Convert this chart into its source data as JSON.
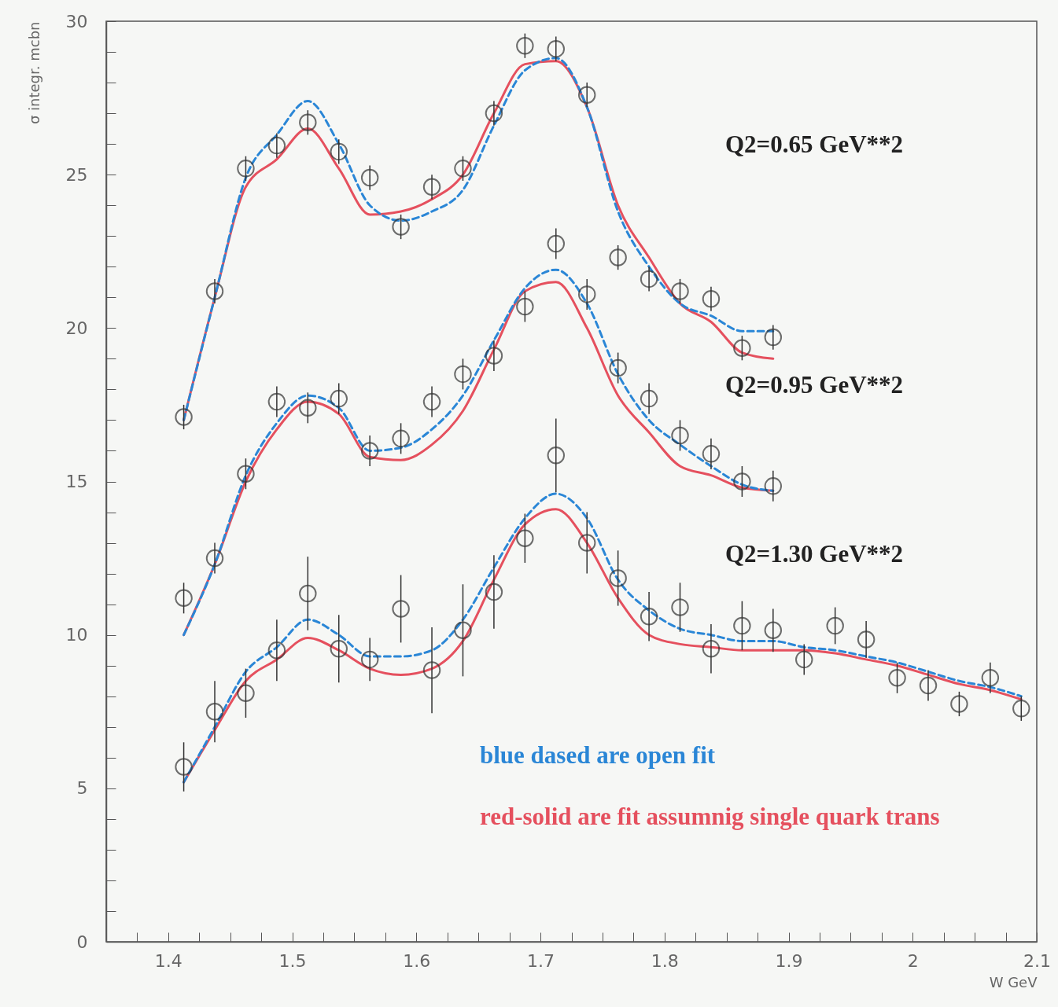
{
  "chart_data": {
    "type": "scatter",
    "xlabel": "W GeV",
    "ylabel": "σ integr. mcbn",
    "xlim": [
      1.35,
      2.1
    ],
    "ylim": [
      0,
      30
    ],
    "xticks": [
      {
        "value": 1.375,
        "label": null
      },
      1.4,
      {
        "value": 1.425,
        "label": null
      },
      {
        "value": 1.45,
        "label": null
      },
      {
        "value": 1.475,
        "label": null
      },
      1.5,
      {
        "value": 1.525,
        "label": null
      },
      {
        "value": 1.55,
        "label": null
      },
      {
        "value": 1.575,
        "label": null
      },
      1.6,
      {
        "value": 1.625,
        "label": null
      },
      {
        "value": 1.65,
        "label": null
      },
      {
        "value": 1.675,
        "label": null
      },
      1.7,
      {
        "value": 1.725,
        "label": null
      },
      {
        "value": 1.75,
        "label": null
      },
      {
        "value": 1.775,
        "label": null
      },
      1.8,
      {
        "value": 1.825,
        "label": null
      },
      {
        "value": 1.85,
        "label": null
      },
      {
        "value": 1.875,
        "label": null
      },
      1.9,
      {
        "value": 1.925,
        "label": null
      },
      {
        "value": 1.95,
        "label": null
      },
      {
        "value": 1.975,
        "label": null
      },
      2,
      {
        "value": 2.025,
        "label": null
      },
      {
        "value": 2.05,
        "label": null
      },
      {
        "value": 2.075,
        "label": null
      },
      2.1
    ],
    "yticks": [
      0,
      {
        "value": 1,
        "label": null
      },
      {
        "value": 2,
        "label": null
      },
      {
        "value": 3,
        "label": null
      },
      {
        "value": 4,
        "label": null
      },
      5,
      {
        "value": 6,
        "label": null
      },
      {
        "value": 7,
        "label": null
      },
      {
        "value": 8,
        "label": null
      },
      {
        "value": 9,
        "label": null
      },
      10,
      {
        "value": 11,
        "label": null
      },
      {
        "value": 12,
        "label": null
      },
      {
        "value": 13,
        "label": null
      },
      {
        "value": 14,
        "label": null
      },
      15,
      {
        "value": 16,
        "label": null
      },
      {
        "value": 17,
        "label": null
      },
      {
        "value": 18,
        "label": null
      },
      {
        "value": 19,
        "label": null
      },
      20,
      {
        "value": 21,
        "label": null
      },
      {
        "value": 22,
        "label": null
      },
      {
        "value": 23,
        "label": null
      },
      {
        "value": 24,
        "label": null
      },
      25,
      {
        "value": 26,
        "label": null
      },
      {
        "value": 27,
        "label": null
      },
      {
        "value": 28,
        "label": null
      },
      {
        "value": 29,
        "label": null
      },
      30
    ],
    "series": [
      {
        "marker": "circle",
        "color": "#333333",
        "x": [
          1.4125,
          1.4375,
          1.4625,
          1.4875,
          1.5125,
          1.5375,
          1.5625,
          1.5875,
          1.6125,
          1.6375,
          1.6625,
          1.6875,
          1.7125,
          1.7375,
          1.7625,
          1.7875,
          1.8125,
          1.8375,
          1.8625,
          1.8875
        ],
        "values": [
          17.1,
          21.2,
          25.2,
          25.95,
          26.7,
          25.75,
          24.9,
          23.3,
          24.6,
          25.2,
          27.0,
          29.2,
          29.1,
          27.6,
          22.3,
          21.6,
          21.2,
          20.95,
          19.35,
          19.7
        ],
        "errors": [
          0.4,
          0.4,
          0.4,
          0.4,
          0.4,
          0.4,
          0.4,
          0.4,
          0.4,
          0.4,
          0.4,
          0.4,
          0.4,
          0.4,
          0.4,
          0.4,
          0.4,
          0.4,
          0.4,
          0.4
        ]
      },
      {
        "type": "line",
        "line_style": "dashed",
        "color": "#2a86d6",
        "x": [
          1.4125,
          1.4375,
          1.4625,
          1.4875,
          1.5125,
          1.5375,
          1.5625,
          1.5875,
          1.6125,
          1.6375,
          1.6625,
          1.6875,
          1.7125,
          1.7375,
          1.7625,
          1.7875,
          1.8125,
          1.8375,
          1.8625,
          1.8875
        ],
        "values": [
          17.0,
          21.0,
          24.9,
          26.3,
          27.4,
          26.0,
          24.0,
          23.5,
          23.8,
          24.5,
          26.6,
          28.4,
          28.8,
          27.2,
          23.8,
          22.0,
          20.8,
          20.4,
          19.9,
          19.9
        ]
      },
      {
        "type": "line",
        "line_style": "solid",
        "color": "#e5505e",
        "x": [
          1.4125,
          1.4375,
          1.4625,
          1.4875,
          1.5125,
          1.5375,
          1.5625,
          1.5875,
          1.6125,
          1.6375,
          1.6625,
          1.6875,
          1.7125,
          1.7375,
          1.7625,
          1.7875,
          1.8125,
          1.8375,
          1.8625,
          1.8875
        ],
        "values": [
          17.0,
          21.0,
          24.6,
          25.5,
          26.5,
          25.2,
          23.7,
          23.8,
          24.2,
          25.0,
          27.0,
          28.6,
          28.7,
          27.2,
          24.0,
          22.3,
          20.8,
          20.2,
          19.2,
          19.0
        ]
      },
      {
        "marker": "circle",
        "color": "#333333",
        "x": [
          1.4125,
          1.4375,
          1.4625,
          1.4875,
          1.5125,
          1.5375,
          1.5625,
          1.5875,
          1.6125,
          1.6375,
          1.6625,
          1.6875,
          1.7125,
          1.7375,
          1.7625,
          1.7875,
          1.8125,
          1.8375,
          1.8625,
          1.8875
        ],
        "values": [
          11.2,
          12.5,
          15.25,
          17.6,
          17.4,
          17.7,
          16.0,
          16.4,
          17.6,
          18.5,
          19.1,
          20.7,
          22.75,
          21.1,
          18.7,
          17.7,
          16.5,
          15.9,
          15.0,
          14.85
        ],
        "errors": [
          0.5,
          0.5,
          0.5,
          0.5,
          0.5,
          0.5,
          0.5,
          0.5,
          0.5,
          0.5,
          0.5,
          0.5,
          0.5,
          0.5,
          0.5,
          0.5,
          0.5,
          0.5,
          0.5,
          0.5
        ]
      },
      {
        "type": "line",
        "line_style": "dashed",
        "color": "#2a86d6",
        "x": [
          1.4125,
          1.4375,
          1.4625,
          1.4875,
          1.5125,
          1.5375,
          1.5625,
          1.5875,
          1.6125,
          1.6375,
          1.6625,
          1.6875,
          1.7125,
          1.7375,
          1.7625,
          1.7875,
          1.8125,
          1.8375,
          1.8625,
          1.8875
        ],
        "values": [
          10.0,
          12.3,
          15.2,
          16.9,
          17.8,
          17.4,
          16.0,
          16.1,
          16.7,
          17.8,
          19.6,
          21.3,
          21.9,
          20.8,
          18.5,
          17.0,
          16.2,
          15.5,
          14.9,
          14.7
        ]
      },
      {
        "type": "line",
        "line_style": "solid",
        "color": "#e5505e",
        "x": [
          1.4125,
          1.4375,
          1.4625,
          1.4875,
          1.5125,
          1.5375,
          1.5625,
          1.5875,
          1.6125,
          1.6375,
          1.6625,
          1.6875,
          1.7125,
          1.7375,
          1.7625,
          1.7875,
          1.8125,
          1.8375,
          1.8625,
          1.8875
        ],
        "values": [
          10.0,
          12.3,
          15.0,
          16.7,
          17.6,
          17.2,
          15.8,
          15.7,
          16.2,
          17.3,
          19.3,
          21.2,
          21.5,
          20.0,
          17.8,
          16.6,
          15.5,
          15.2,
          14.8,
          14.7
        ]
      },
      {
        "marker": "circle",
        "color": "#333333",
        "x": [
          1.4125,
          1.4375,
          1.4625,
          1.4875,
          1.5125,
          1.5375,
          1.5625,
          1.5875,
          1.6125,
          1.6375,
          1.6625,
          1.6875,
          1.7125,
          1.7375,
          1.7625,
          1.7875,
          1.8125,
          1.8375,
          1.8625,
          1.8875,
          1.9125,
          1.9375,
          1.9625,
          1.9875,
          2.0125,
          2.0375,
          2.0625,
          2.0875
        ],
        "values": [
          5.7,
          7.5,
          8.1,
          9.5,
          11.35,
          9.55,
          9.2,
          10.85,
          8.85,
          10.15,
          11.4,
          13.15,
          15.85,
          13.0,
          11.85,
          10.6,
          10.9,
          9.55,
          10.3,
          10.15,
          9.2,
          10.3,
          9.85,
          8.6,
          8.35,
          7.75,
          8.6,
          7.6
        ],
        "errors": [
          0.8,
          1.0,
          0.8,
          1.0,
          1.2,
          1.1,
          0.7,
          1.1,
          1.4,
          1.5,
          1.2,
          0.8,
          1.2,
          1.0,
          0.9,
          0.8,
          0.8,
          0.8,
          0.8,
          0.7,
          0.5,
          0.6,
          0.6,
          0.5,
          0.5,
          0.4,
          0.5,
          0.4
        ]
      },
      {
        "type": "line",
        "line_style": "dashed",
        "color": "#2a86d6",
        "x": [
          1.4125,
          1.4375,
          1.4625,
          1.4875,
          1.5125,
          1.5375,
          1.5625,
          1.5875,
          1.6125,
          1.6375,
          1.6625,
          1.6875,
          1.7125,
          1.7375,
          1.7625,
          1.7875,
          1.8125,
          1.8375,
          1.8625,
          1.8875,
          1.9125,
          1.9375,
          1.9625,
          1.9875,
          2.0125,
          2.0375,
          2.0625,
          2.0875
        ],
        "values": [
          5.2,
          7.0,
          8.8,
          9.6,
          10.5,
          10.0,
          9.3,
          9.3,
          9.5,
          10.5,
          12.2,
          13.8,
          14.6,
          13.8,
          11.8,
          10.8,
          10.2,
          10.0,
          9.8,
          9.8,
          9.6,
          9.5,
          9.3,
          9.1,
          8.8,
          8.5,
          8.3,
          8.0
        ]
      },
      {
        "type": "line",
        "line_style": "solid",
        "color": "#e5505e",
        "x": [
          1.4125,
          1.4375,
          1.4625,
          1.4875,
          1.5125,
          1.5375,
          1.5625,
          1.5875,
          1.6125,
          1.6375,
          1.6625,
          1.6875,
          1.7125,
          1.7375,
          1.7625,
          1.7875,
          1.8125,
          1.8375,
          1.8625,
          1.8875,
          1.9125,
          1.9375,
          1.9625,
          1.9875,
          2.0125,
          2.0375,
          2.0625,
          2.0875
        ],
        "values": [
          5.2,
          6.9,
          8.5,
          9.2,
          9.9,
          9.5,
          8.9,
          8.7,
          8.9,
          9.8,
          11.8,
          13.6,
          14.1,
          13.0,
          11.2,
          10.0,
          9.7,
          9.6,
          9.5,
          9.5,
          9.5,
          9.4,
          9.2,
          9.0,
          8.7,
          8.4,
          8.2,
          7.9
        ]
      }
    ],
    "annotations": [
      "Q2=0.65 GeV**2",
      "Q2=0.95 GeV**2",
      "Q2=1.30 GeV**2",
      "blue dased are open fit",
      "red-solid are fit assumnig single quark trans"
    ]
  }
}
